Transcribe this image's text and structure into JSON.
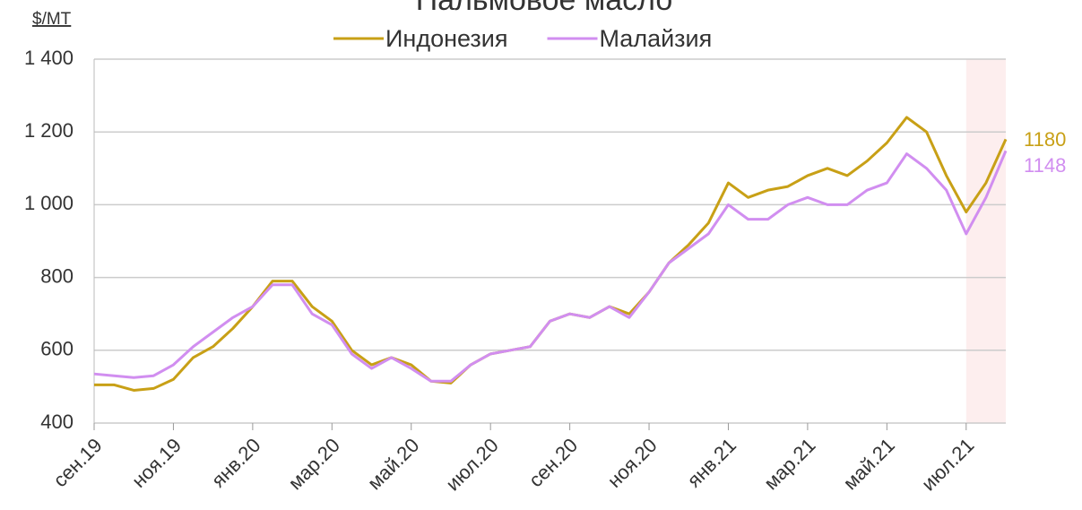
{
  "chart_data": {
    "type": "line",
    "title": "Пальмовое масло",
    "y_label": "$/MT",
    "categories": [
      "сен.19",
      null,
      null,
      null,
      "ноя.19",
      null,
      null,
      null,
      "янв.20",
      null,
      null,
      null,
      "мар.20",
      null,
      null,
      null,
      "май.20",
      null,
      null,
      null,
      "июл.20",
      null,
      null,
      null,
      "сен.20",
      null,
      null,
      null,
      "ноя.20",
      null,
      null,
      null,
      "янв.21",
      null,
      null,
      null,
      "мар.21",
      null,
      null,
      null,
      "май.21",
      null,
      null,
      null,
      "июл.21",
      null,
      null
    ],
    "series": [
      {
        "name": "Индонезия",
        "color": "#c8a016",
        "values": [
          505,
          505,
          490,
          495,
          520,
          580,
          610,
          660,
          720,
          790,
          790,
          720,
          680,
          600,
          560,
          580,
          560,
          515,
          510,
          560,
          590,
          600,
          610,
          680,
          700,
          690,
          720,
          700,
          760,
          840,
          890,
          950,
          1060,
          1020,
          1040,
          1050,
          1080,
          1100,
          1080,
          1120,
          1170,
          1240,
          1200,
          1080,
          980,
          1060,
          1180
        ]
      },
      {
        "name": "Малайзия",
        "color": "#d18ef0",
        "values": [
          535,
          530,
          525,
          530,
          560,
          610,
          650,
          690,
          720,
          780,
          780,
          700,
          670,
          590,
          550,
          580,
          550,
          515,
          515,
          560,
          590,
          600,
          610,
          680,
          700,
          690,
          720,
          690,
          760,
          840,
          880,
          920,
          1000,
          960,
          960,
          1000,
          1020,
          1000,
          1000,
          1040,
          1060,
          1140,
          1100,
          1040,
          920,
          1020,
          1148
        ]
      }
    ],
    "ylim": [
      400,
      1400
    ],
    "yticks": [
      400,
      600,
      800,
      {
        "value": 1000,
        "label": "1 000"
      },
      {
        "value": 1200,
        "label": "1 200"
      },
      {
        "value": 1400,
        "label": "1 400"
      }
    ],
    "grid": true,
    "legend": "top"
  }
}
